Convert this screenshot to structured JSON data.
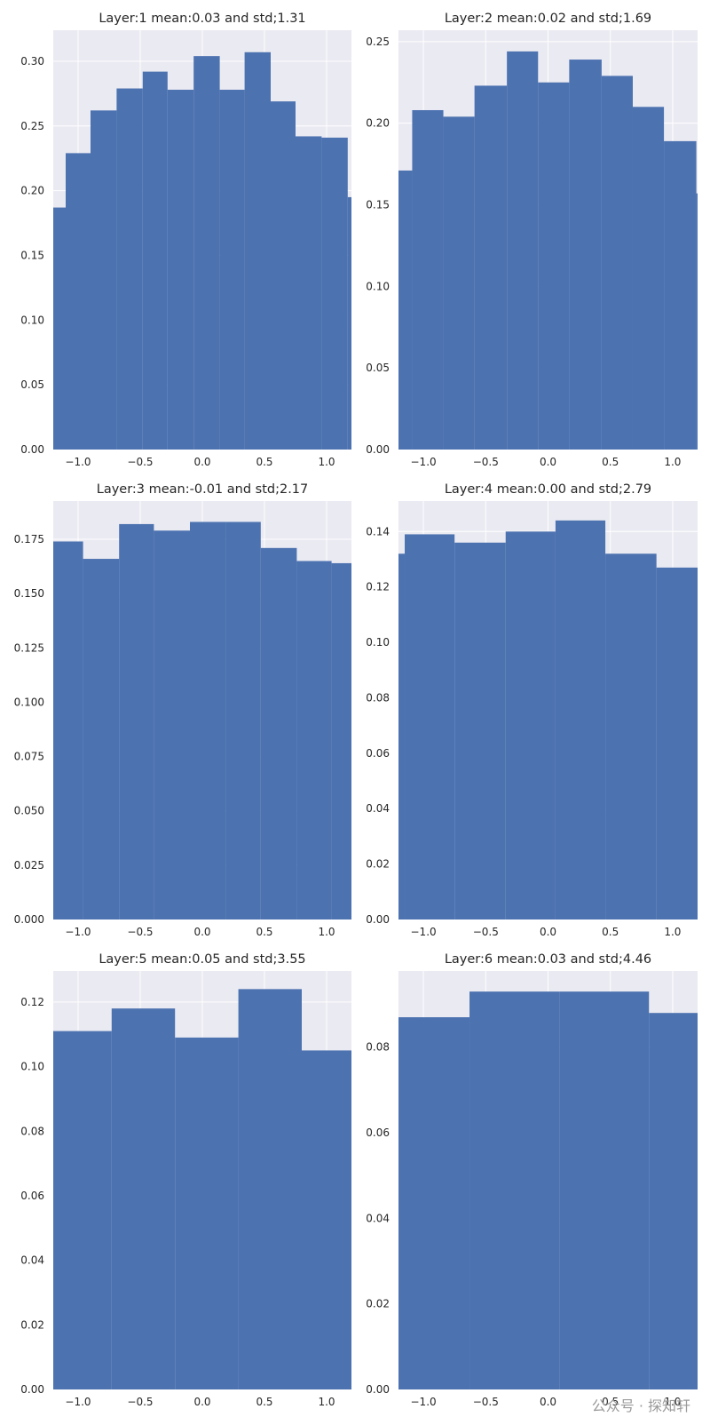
{
  "chart_data": [
    {
      "type": "histogram",
      "title": "Layer:1 mean:0.03 and std;1.31",
      "color": "#4c72b0",
      "grid": true,
      "bins": [
        -1.31,
        -1.1,
        -0.9,
        -0.69,
        -0.48,
        -0.28,
        -0.07,
        0.14,
        0.34,
        0.55,
        0.75,
        0.96,
        1.17,
        1.37
      ],
      "values": [
        0.187,
        0.229,
        0.262,
        0.279,
        0.292,
        0.278,
        0.304,
        0.278,
        0.307,
        0.269,
        0.242,
        0.241,
        0.195
      ],
      "xlim": [
        -1.2,
        1.2
      ],
      "ylim": [
        0,
        0.324
      ],
      "xticks": [
        {
          "value": -1.0,
          "label": "−1.0"
        },
        {
          "value": -0.5,
          "label": "−0.5"
        },
        {
          "value": 0.0,
          "label": "0.0"
        },
        {
          "value": 0.5,
          "label": "0.5"
        },
        {
          "value": 1.0,
          "label": "1.0"
        }
      ],
      "yticks": [
        {
          "value": 0,
          "label": "0.00"
        },
        {
          "value": 0.05,
          "label": "0.05"
        },
        {
          "value": 0.1,
          "label": "0.10"
        },
        {
          "value": 0.15,
          "label": "0.15"
        },
        {
          "value": 0.2,
          "label": "0.20"
        },
        {
          "value": 0.25,
          "label": "0.25"
        },
        {
          "value": 0.3,
          "label": "0.30"
        }
      ]
    },
    {
      "type": "histogram",
      "title": "Layer:2 mean:0.02 and std;1.69",
      "color": "#4c72b0",
      "grid": true,
      "bins": [
        -1.34,
        -1.09,
        -0.84,
        -0.59,
        -0.33,
        -0.08,
        0.17,
        0.43,
        0.68,
        0.93,
        1.19,
        1.44
      ],
      "values": [
        0.171,
        0.208,
        0.204,
        0.223,
        0.244,
        0.225,
        0.239,
        0.229,
        0.21,
        0.189,
        0.157
      ],
      "xlim": [
        -1.2,
        1.2
      ],
      "ylim": [
        0,
        0.257
      ],
      "xticks": [
        {
          "value": -1.0,
          "label": "−1.0"
        },
        {
          "value": -0.5,
          "label": "−0.5"
        },
        {
          "value": 0.0,
          "label": "0.0"
        },
        {
          "value": 0.5,
          "label": "0.5"
        },
        {
          "value": 1.0,
          "label": "1.0"
        }
      ],
      "yticks": [
        {
          "value": 0,
          "label": "0.00"
        },
        {
          "value": 0.05,
          "label": "0.05"
        },
        {
          "value": 0.1,
          "label": "0.10"
        },
        {
          "value": 0.15,
          "label": "0.15"
        },
        {
          "value": 0.2,
          "label": "0.20"
        },
        {
          "value": 0.25,
          "label": "0.25"
        }
      ]
    },
    {
      "type": "histogram",
      "title": "Layer:3 mean:-0.01 and std;2.17",
      "color": "#4c72b0",
      "grid": true,
      "bins": [
        -1.25,
        -0.96,
        -0.67,
        -0.39,
        -0.1,
        0.19,
        0.47,
        0.76,
        1.04,
        1.33
      ],
      "values": [
        0.174,
        0.166,
        0.182,
        0.179,
        0.183,
        0.183,
        0.171,
        0.165,
        0.164
      ],
      "xlim": [
        -1.2,
        1.2
      ],
      "ylim": [
        0,
        0.1926
      ],
      "xticks": [
        {
          "value": -1.0,
          "label": "−1.0"
        },
        {
          "value": -0.5,
          "label": "−0.5"
        },
        {
          "value": 0.0,
          "label": "0.0"
        },
        {
          "value": 0.5,
          "label": "0.5"
        },
        {
          "value": 1.0,
          "label": "1.0"
        }
      ],
      "yticks": [
        {
          "value": 0,
          "label": "0.000"
        },
        {
          "value": 0.025,
          "label": "0.025"
        },
        {
          "value": 0.05,
          "label": "0.050"
        },
        {
          "value": 0.075,
          "label": "0.075"
        },
        {
          "value": 0.1,
          "label": "0.100"
        },
        {
          "value": 0.125,
          "label": "0.125"
        },
        {
          "value": 0.15,
          "label": "0.150"
        },
        {
          "value": 0.175,
          "label": "0.175"
        }
      ]
    },
    {
      "type": "histogram",
      "title": "Layer:4 mean:0.00 and std;2.79",
      "color": "#4c72b0",
      "grid": true,
      "bins": [
        -1.56,
        -1.15,
        -0.75,
        -0.34,
        0.06,
        0.46,
        0.87,
        1.28
      ],
      "values": [
        0.132,
        0.139,
        0.136,
        0.14,
        0.144,
        0.132,
        0.127
      ],
      "xlim": [
        -1.2,
        1.2
      ],
      "ylim": [
        0,
        0.151
      ],
      "xticks": [
        {
          "value": -1.0,
          "label": "−1.0"
        },
        {
          "value": -0.5,
          "label": "−0.5"
        },
        {
          "value": 0.0,
          "label": "0.0"
        },
        {
          "value": 0.5,
          "label": "0.5"
        },
        {
          "value": 1.0,
          "label": "1.0"
        }
      ],
      "yticks": [
        {
          "value": 0,
          "label": "0.00"
        },
        {
          "value": 0.02,
          "label": "0.02"
        },
        {
          "value": 0.04,
          "label": "0.04"
        },
        {
          "value": 0.06,
          "label": "0.06"
        },
        {
          "value": 0.08,
          "label": "0.08"
        },
        {
          "value": 0.1,
          "label": "0.10"
        },
        {
          "value": 0.12,
          "label": "0.12"
        },
        {
          "value": 0.14,
          "label": "0.14"
        }
      ]
    },
    {
      "type": "histogram",
      "title": "Layer:5 mean:0.05 and std;3.55",
      "color": "#4c72b0",
      "grid": true,
      "bins": [
        -1.24,
        -0.73,
        -0.22,
        0.29,
        0.8,
        1.31
      ],
      "values": [
        0.111,
        0.118,
        0.109,
        0.124,
        0.105
      ],
      "xlim": [
        -1.2,
        1.2
      ],
      "ylim": [
        0,
        0.1296
      ],
      "xticks": [
        {
          "value": -1.0,
          "label": "−1.0"
        },
        {
          "value": -0.5,
          "label": "−0.5"
        },
        {
          "value": 0.0,
          "label": "0.0"
        },
        {
          "value": 0.5,
          "label": "0.5"
        },
        {
          "value": 1.0,
          "label": "1.0"
        }
      ],
      "yticks": [
        {
          "value": 0,
          "label": "0.00"
        },
        {
          "value": 0.02,
          "label": "0.02"
        },
        {
          "value": 0.04,
          "label": "0.04"
        },
        {
          "value": 0.06,
          "label": "0.06"
        },
        {
          "value": 0.08,
          "label": "0.08"
        },
        {
          "value": 0.1,
          "label": "0.10"
        },
        {
          "value": 0.12,
          "label": "0.12"
        }
      ]
    },
    {
      "type": "histogram",
      "title": "Layer:6 mean:0.03 and std;4.46",
      "color": "#4c72b0",
      "grid": true,
      "bins": [
        -1.35,
        -0.63,
        0.09,
        0.81,
        1.53
      ],
      "values": [
        0.087,
        0.093,
        0.093,
        0.088
      ],
      "xlim": [
        -1.2,
        1.2
      ],
      "ylim": [
        0,
        0.0978
      ],
      "xticks": [
        {
          "value": -1.0,
          "label": "−1.0"
        },
        {
          "value": -0.5,
          "label": "−0.5"
        },
        {
          "value": 0.0,
          "label": "0.0"
        },
        {
          "value": 0.5,
          "label": "0.5"
        },
        {
          "value": 1.0,
          "label": "1.0"
        }
      ],
      "yticks": [
        {
          "value": 0,
          "label": "0.00"
        },
        {
          "value": 0.02,
          "label": "0.02"
        },
        {
          "value": 0.04,
          "label": "0.04"
        },
        {
          "value": 0.06,
          "label": "0.06"
        },
        {
          "value": 0.08,
          "label": "0.08"
        }
      ]
    }
  ],
  "watermark": "公众号 · 探知轩"
}
